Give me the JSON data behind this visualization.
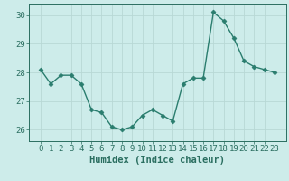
{
  "x": [
    0,
    1,
    2,
    3,
    4,
    5,
    6,
    7,
    8,
    9,
    10,
    11,
    12,
    13,
    14,
    15,
    16,
    17,
    18,
    19,
    20,
    21,
    22,
    23
  ],
  "y": [
    28.1,
    27.6,
    27.9,
    27.9,
    27.6,
    26.7,
    26.6,
    26.1,
    26.0,
    26.1,
    26.5,
    26.7,
    26.5,
    26.3,
    27.6,
    27.8,
    27.8,
    30.1,
    29.8,
    29.2,
    28.4,
    28.2,
    28.1,
    28.0
  ],
  "line_color": "#2a7d6e",
  "marker": "D",
  "marker_size": 2.5,
  "bg_color": "#cdecea",
  "grid_color": "#b8d8d5",
  "xlabel": "Humidex (Indice chaleur)",
  "ylim": [
    25.6,
    30.4
  ],
  "yticks": [
    26,
    27,
    28,
    29,
    30
  ],
  "xticks": [
    0,
    1,
    2,
    3,
    4,
    5,
    6,
    7,
    8,
    9,
    10,
    11,
    12,
    13,
    14,
    15,
    16,
    17,
    18,
    19,
    20,
    21,
    22,
    23
  ],
  "xlabel_fontsize": 7.5,
  "tick_fontsize": 6.5,
  "tick_color": "#2a6e60",
  "axis_color": "#2a6e60",
  "linewidth": 1.0
}
